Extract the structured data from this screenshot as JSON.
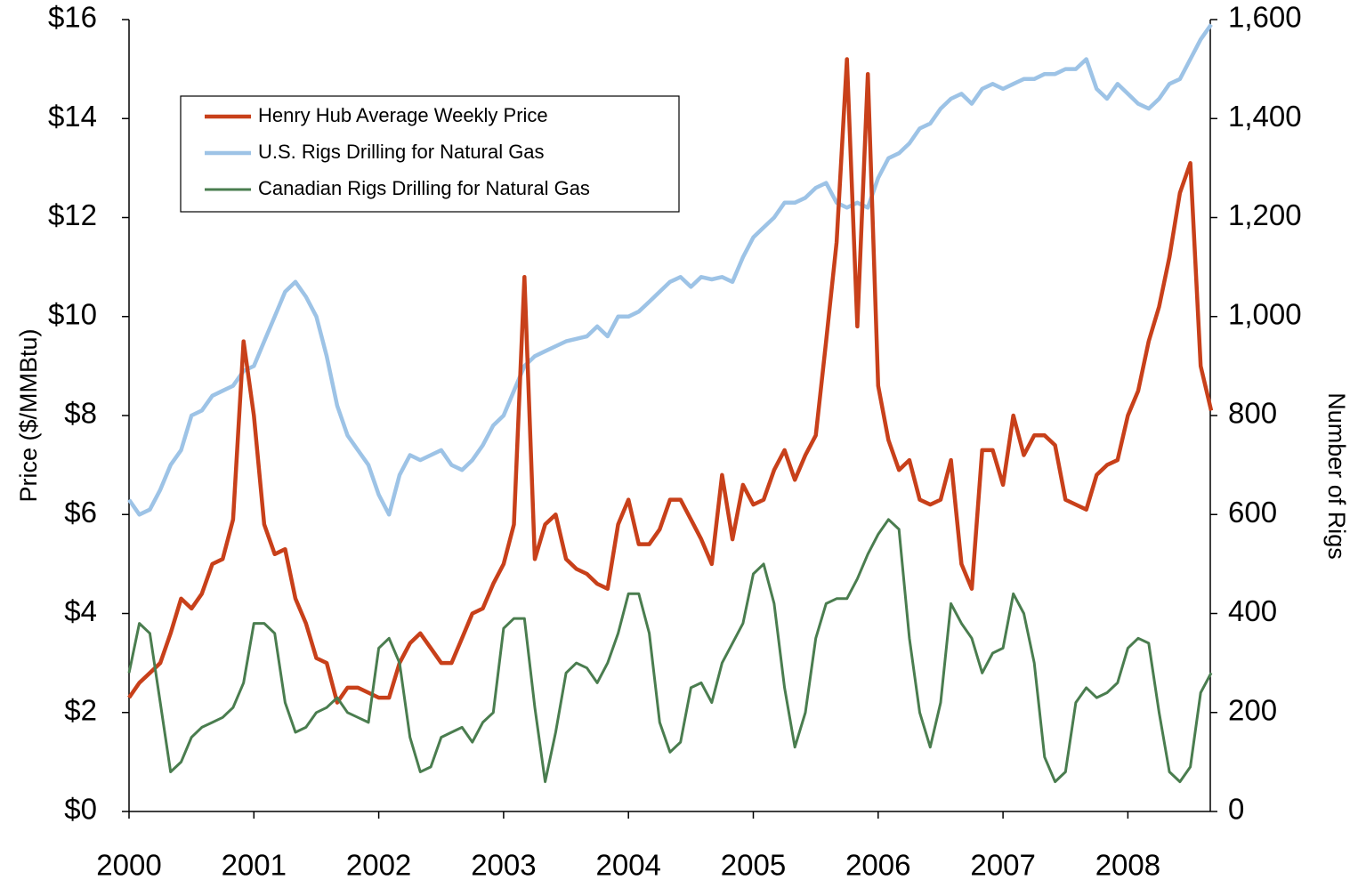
{
  "chart_data": {
    "type": "line",
    "y_label": "Price ($/MMBtu)",
    "y2_label": "Number of Rigs",
    "xlim": [
      2000,
      2008.66
    ],
    "xticks": [
      2000,
      2001,
      2002,
      2003,
      2004,
      2005,
      2006,
      2007,
      2008
    ],
    "ylim": [
      0,
      16
    ],
    "yticks": [
      {
        "value": 0,
        "label": "$0"
      },
      {
        "value": 2,
        "label": "$2"
      },
      {
        "value": 4,
        "label": "$4"
      },
      {
        "value": 6,
        "label": "$6"
      },
      {
        "value": 8,
        "label": "$8"
      },
      {
        "value": 10,
        "label": "$10"
      },
      {
        "value": 12,
        "label": "$12"
      },
      {
        "value": 14,
        "label": "$14"
      },
      {
        "value": 16,
        "label": "$16"
      }
    ],
    "y2lim": [
      0,
      1600
    ],
    "y2ticks": [
      0,
      200,
      400,
      600,
      800,
      {
        "value": 1000,
        "label": "1,000"
      },
      {
        "value": 1200,
        "label": "1,200"
      },
      {
        "value": 1400,
        "label": "1,400"
      },
      {
        "value": 1600,
        "label": "1,600"
      }
    ],
    "x": [
      2000,
      2000.083,
      2000.167,
      2000.25,
      2000.333,
      2000.417,
      2000.5,
      2000.583,
      2000.667,
      2000.75,
      2000.833,
      2000.917,
      2001,
      2001.083,
      2001.167,
      2001.25,
      2001.333,
      2001.417,
      2001.5,
      2001.583,
      2001.667,
      2001.75,
      2001.833,
      2001.917,
      2002,
      2002.083,
      2002.167,
      2002.25,
      2002.333,
      2002.417,
      2002.5,
      2002.583,
      2002.667,
      2002.75,
      2002.833,
      2002.917,
      2003,
      2003.083,
      2003.167,
      2003.25,
      2003.333,
      2003.417,
      2003.5,
      2003.583,
      2003.667,
      2003.75,
      2003.833,
      2003.917,
      2004,
      2004.083,
      2004.167,
      2004.25,
      2004.333,
      2004.417,
      2004.5,
      2004.583,
      2004.667,
      2004.75,
      2004.833,
      2004.917,
      2005,
      2005.083,
      2005.167,
      2005.25,
      2005.333,
      2005.417,
      2005.5,
      2005.583,
      2005.667,
      2005.75,
      2005.833,
      2005.917,
      2006,
      2006.083,
      2006.167,
      2006.25,
      2006.333,
      2006.417,
      2006.5,
      2006.583,
      2006.667,
      2006.75,
      2006.833,
      2006.917,
      2007,
      2007.083,
      2007.167,
      2007.25,
      2007.333,
      2007.417,
      2007.5,
      2007.583,
      2007.667,
      2007.75,
      2007.833,
      2007.917,
      2008,
      2008.083,
      2008.167,
      2008.25,
      2008.333,
      2008.417,
      2008.5,
      2008.583,
      2008.667
    ],
    "series": [
      {
        "name": "Henry Hub Average Weekly Price",
        "color": "#c8401a",
        "axis": "y",
        "values": [
          2.3,
          2.6,
          2.8,
          3.0,
          3.6,
          4.3,
          4.1,
          4.4,
          5.0,
          5.1,
          5.9,
          9.5,
          8.0,
          5.8,
          5.2,
          5.3,
          4.3,
          3.8,
          3.1,
          3.0,
          2.2,
          2.5,
          2.5,
          2.4,
          2.3,
          2.3,
          3.0,
          3.4,
          3.6,
          3.3,
          3.0,
          3.0,
          3.5,
          4.0,
          4.1,
          4.6,
          5.0,
          5.8,
          10.8,
          5.1,
          5.8,
          6.0,
          5.1,
          4.9,
          4.8,
          4.6,
          4.5,
          5.8,
          6.3,
          5.4,
          5.4,
          5.7,
          6.3,
          6.3,
          5.9,
          5.5,
          5.0,
          6.8,
          5.5,
          6.6,
          6.2,
          6.3,
          6.9,
          7.3,
          6.7,
          7.2,
          7.6,
          9.5,
          11.5,
          15.2,
          9.8,
          14.9,
          8.6,
          7.5,
          6.9,
          7.1,
          6.3,
          6.2,
          6.3,
          7.1,
          5.0,
          4.5,
          7.3,
          7.3,
          6.6,
          8.0,
          7.2,
          7.6,
          7.6,
          7.4,
          6.3,
          6.2,
          6.1,
          6.8,
          7.0,
          7.1,
          8.0,
          8.5,
          9.5,
          10.2,
          11.2,
          12.5,
          13.1,
          9.0,
          8.1
        ]
      },
      {
        "name": "U.S. Rigs Drilling for Natural Gas",
        "color": "#9dc3e6",
        "axis": "y2",
        "values": [
          630,
          600,
          610,
          650,
          700,
          730,
          800,
          810,
          840,
          850,
          860,
          890,
          900,
          950,
          1000,
          1050,
          1070,
          1040,
          1000,
          920,
          820,
          760,
          730,
          700,
          640,
          600,
          680,
          720,
          710,
          720,
          730,
          700,
          690,
          710,
          740,
          780,
          800,
          850,
          900,
          920,
          930,
          940,
          950,
          955,
          960,
          980,
          960,
          1000,
          1000,
          1010,
          1030,
          1050,
          1070,
          1080,
          1060,
          1080,
          1075,
          1080,
          1070,
          1120,
          1160,
          1180,
          1200,
          1230,
          1230,
          1240,
          1260,
          1270,
          1230,
          1220,
          1230,
          1220,
          1280,
          1320,
          1330,
          1350,
          1380,
          1390,
          1420,
          1440,
          1450,
          1430,
          1460,
          1470,
          1460,
          1470,
          1480,
          1480,
          1490,
          1490,
          1500,
          1500,
          1520,
          1460,
          1440,
          1470,
          1450,
          1430,
          1420,
          1440,
          1470,
          1480,
          1520,
          1560,
          1590
        ]
      },
      {
        "name": "Canadian Rigs Drilling for Natural Gas",
        "color": "#4a7d4f",
        "axis": "y2",
        "values": [
          280,
          380,
          360,
          220,
          80,
          100,
          150,
          170,
          180,
          190,
          210,
          260,
          380,
          380,
          360,
          220,
          160,
          170,
          200,
          210,
          230,
          200,
          190,
          180,
          330,
          350,
          300,
          150,
          80,
          90,
          150,
          160,
          170,
          140,
          180,
          200,
          370,
          390,
          390,
          210,
          60,
          160,
          280,
          300,
          290,
          260,
          300,
          360,
          440,
          440,
          360,
          180,
          120,
          140,
          250,
          260,
          220,
          300,
          340,
          380,
          480,
          500,
          420,
          250,
          130,
          200,
          350,
          420,
          430,
          430,
          470,
          520,
          560,
          590,
          570,
          350,
          200,
          130,
          220,
          420,
          380,
          350,
          280,
          320,
          330,
          440,
          400,
          300,
          110,
          60,
          80,
          220,
          250,
          230,
          240,
          260,
          330,
          350,
          340,
          200,
          80,
          60,
          90,
          240,
          280
        ]
      }
    ]
  }
}
